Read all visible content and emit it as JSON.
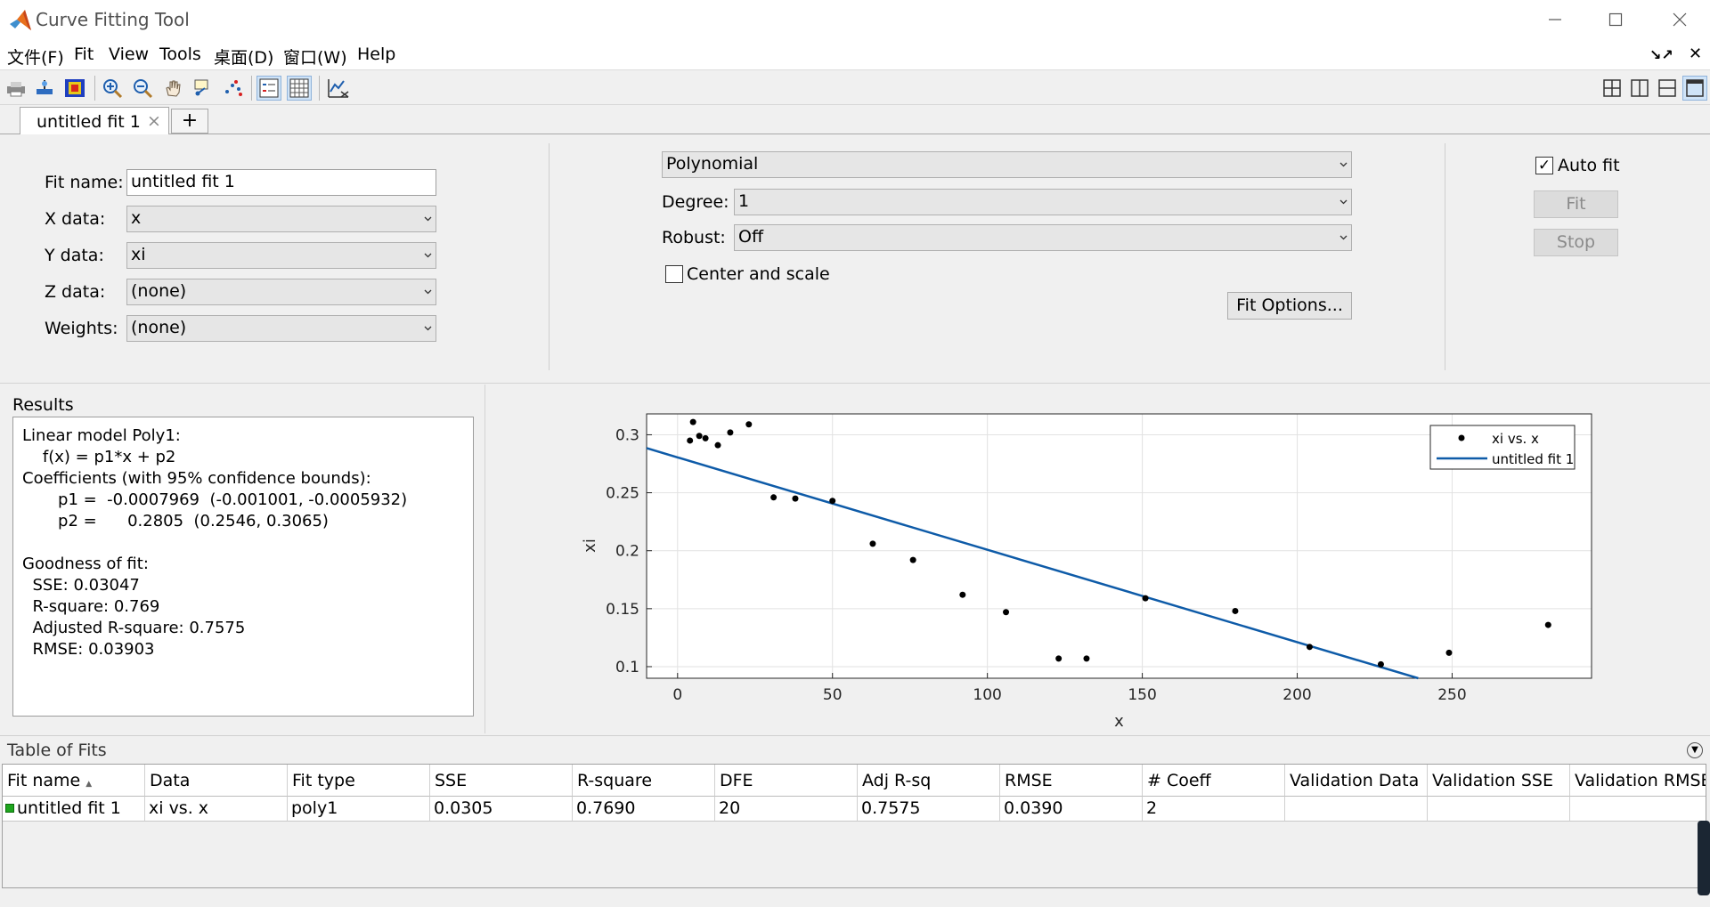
{
  "window": {
    "title": "Curve Fitting Tool"
  },
  "menu": {
    "items": [
      "文件(F)",
      "Fit",
      "View",
      "Tools",
      "桌面(D)",
      "窗口(W)",
      "Help"
    ]
  },
  "tabs": {
    "active": "untitled fit 1",
    "close_symbol": "×",
    "add_symbol": "+"
  },
  "data_panel": {
    "fit_name_label": "Fit name:",
    "fit_name_value": "untitled fit 1",
    "x_label": "X data:",
    "x_value": "x",
    "y_label": "Y data:",
    "y_value": "xi",
    "z_label": "Z data:",
    "z_value": "(none)",
    "weights_label": "Weights:",
    "weights_value": "(none)"
  },
  "model_panel": {
    "fit_type": "Polynomial",
    "degree_label": "Degree:",
    "degree_value": "1",
    "robust_label": "Robust:",
    "robust_value": "Off",
    "center_scale_label": "Center and scale",
    "center_scale_checked": false,
    "fit_options_label": "Fit Options..."
  },
  "actions": {
    "auto_fit_label": "Auto fit",
    "auto_fit_checked": true,
    "fit_label": "Fit",
    "stop_label": "Stop"
  },
  "results": {
    "title": "Results",
    "lines": [
      "Linear model Poly1:",
      "    f(x) = p1*x + p2",
      "Coefficients (with 95% confidence bounds):",
      "       p1 =  -0.0007969  (-0.001001, -0.0005932)",
      "       p2 =      0.2805  (0.2546, 0.3065)",
      "",
      "Goodness of fit:",
      "  SSE: 0.03047",
      "  R-square: 0.769",
      "  Adjusted R-square: 0.7575",
      "  RMSE: 0.03903"
    ]
  },
  "chart_data": {
    "type": "scatter",
    "xlabel": "x",
    "ylabel": "xi",
    "xlim": [
      -10,
      295
    ],
    "ylim": [
      0.09,
      0.318
    ],
    "xticks": [
      0,
      50,
      100,
      150,
      200,
      250
    ],
    "yticks": [
      0.1,
      0.15,
      0.2,
      0.25,
      0.3
    ],
    "ytick_labels": [
      "0.1",
      "0.15",
      "0.2",
      "0.25",
      "0.3"
    ],
    "grid": true,
    "legend": {
      "position": "top-right",
      "entries": [
        "xi vs. x",
        "untitled fit 1"
      ]
    },
    "series": [
      {
        "name": "xi vs. x",
        "points": [
          [
            4,
            0.295
          ],
          [
            5,
            0.311
          ],
          [
            7,
            0.299
          ],
          [
            9,
            0.297
          ],
          [
            13,
            0.291
          ],
          [
            17,
            0.302
          ],
          [
            23,
            0.309
          ],
          [
            31,
            0.246
          ],
          [
            38,
            0.245
          ],
          [
            50,
            0.243
          ],
          [
            63,
            0.206
          ],
          [
            76,
            0.192
          ],
          [
            92,
            0.162
          ],
          [
            106,
            0.147
          ],
          [
            123,
            0.107
          ],
          [
            132,
            0.107
          ],
          [
            151,
            0.159
          ],
          [
            180,
            0.148
          ],
          [
            204,
            0.117
          ],
          [
            227,
            0.102
          ],
          [
            249,
            0.112
          ],
          [
            281,
            0.136
          ]
        ],
        "color": "#000000"
      },
      {
        "name": "untitled fit 1",
        "fit": {
          "p1": -0.0007969,
          "p2": 0.2805
        },
        "color": "#0e5ba8"
      }
    ]
  },
  "table_of_fits": {
    "title": "Table of Fits",
    "sort_indicator": "▲",
    "columns": [
      "Fit name",
      "Data",
      "Fit type",
      "SSE",
      "R-square",
      "DFE",
      "Adj R-sq",
      "RMSE",
      "# Coeff",
      "Validation Data",
      "Validation SSE",
      "Validation RMSE"
    ],
    "rows": [
      [
        "untitled fit 1",
        "xi vs. x",
        "poly1",
        "0.0305",
        "0.7690",
        "20",
        "0.7575",
        "0.0390",
        "2",
        "",
        "",
        ""
      ]
    ],
    "row_marker_color": "#1ea51e"
  }
}
